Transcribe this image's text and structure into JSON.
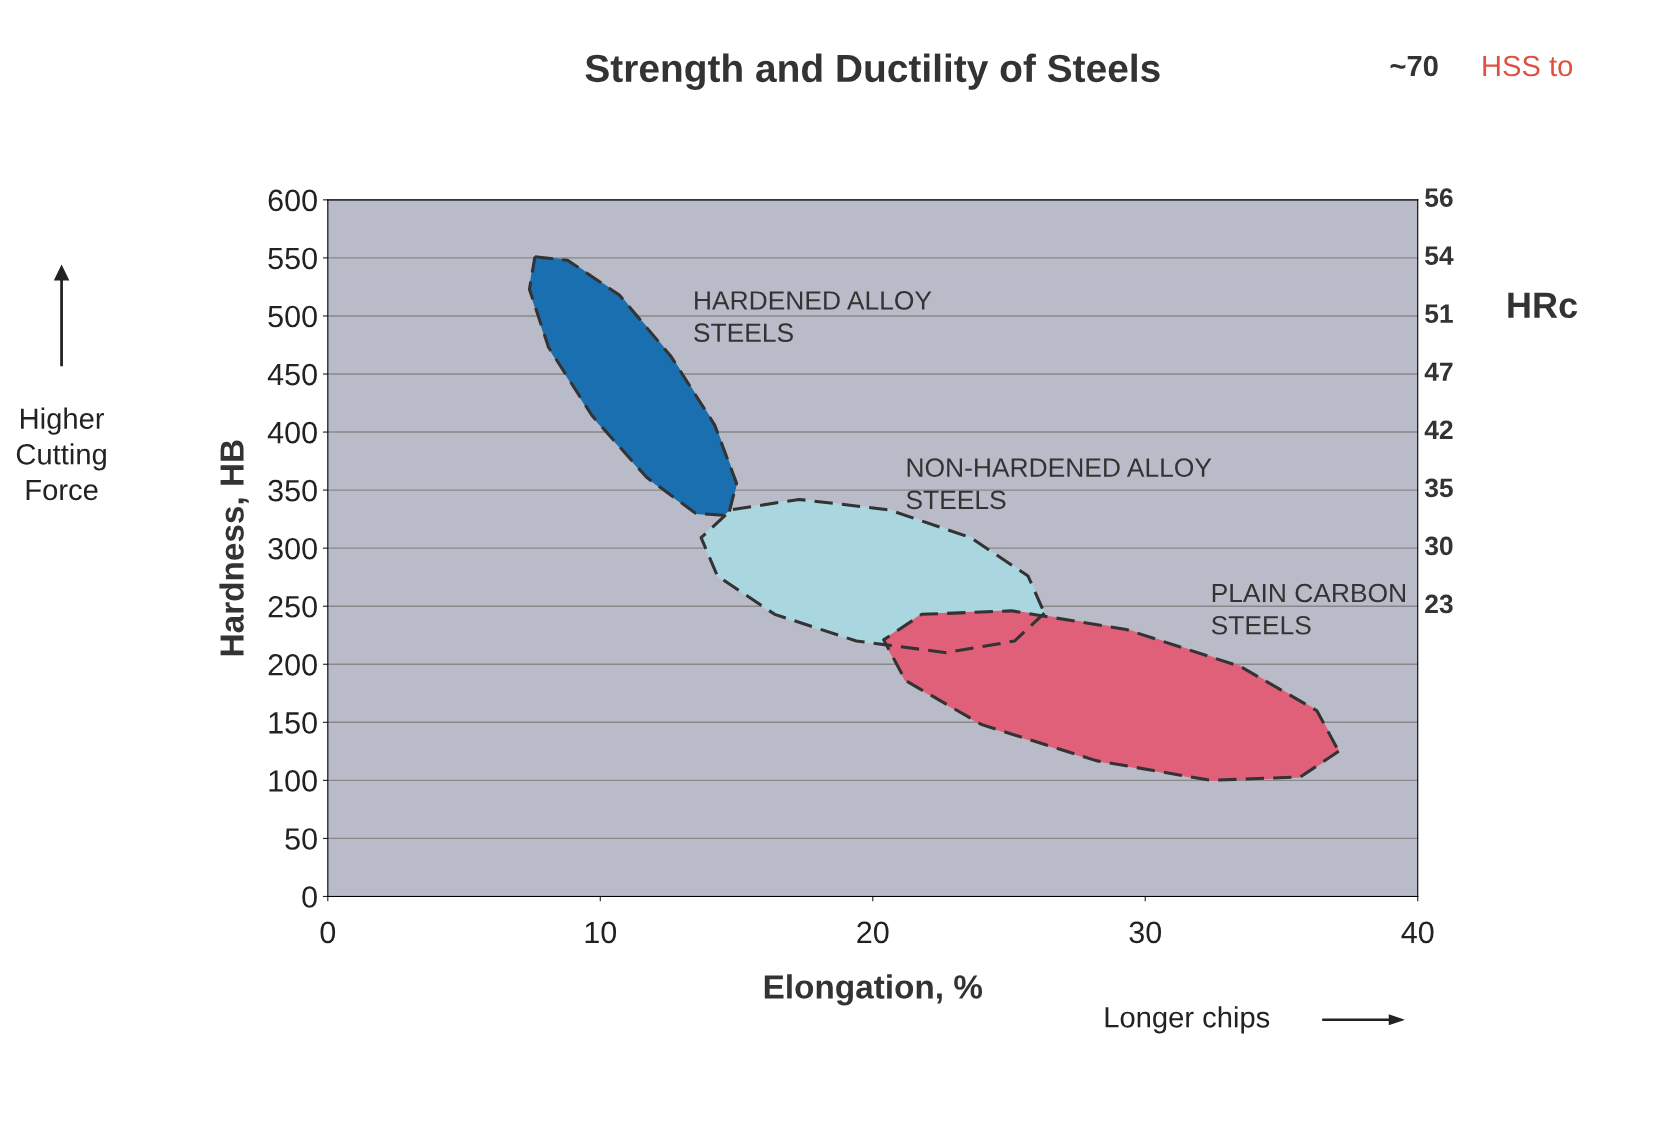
{
  "chart_data": {
    "type": "area",
    "title": "Strength and Ductility of Steels",
    "xlabel": "Elongation, %",
    "ylabel": "Hardness, HB",
    "y2label": "HRc",
    "xlim": [
      0,
      40
    ],
    "xticks": [
      0,
      10,
      20,
      30,
      40
    ],
    "ylim": [
      0,
      600
    ],
    "yticks": [
      0,
      50,
      100,
      150,
      200,
      250,
      300,
      350,
      400,
      450,
      500,
      550,
      600
    ],
    "grid": "y",
    "line_style": "dashed",
    "marker": "none",
    "series": [
      {
        "color": "#1a6fb0",
        "x": [
          7.6,
          8.8,
          10.7,
          12.6,
          14.2,
          15.0,
          14.7,
          13.5,
          11.7,
          9.7,
          8.1,
          7.4
        ],
        "values": [
          551,
          548,
          518,
          465,
          406,
          356,
          328,
          330,
          361,
          414,
          473,
          523
        ]
      },
      {
        "color": "#a9d6df",
        "x": [
          26.3,
          25.2,
          22.7,
          19.4,
          16.4,
          14.3,
          13.7,
          14.8,
          17.3,
          20.6,
          23.6,
          25.7
        ],
        "values": [
          244,
          220,
          210,
          220,
          243,
          276,
          309,
          333,
          342,
          333,
          309,
          276
        ]
      },
      {
        "color": "#e0607a",
        "x": [
          37.1,
          35.7,
          32.4,
          28.2,
          24.0,
          21.2,
          20.4,
          21.8,
          25.1,
          29.3,
          33.5,
          36.3
        ],
        "values": [
          125,
          103,
          100,
          117,
          148,
          186,
          221,
          243,
          246,
          230,
          198,
          160
        ]
      }
    ],
    "annotations": [
      "HARDENED ALLOY\nSTEELS",
      "NON-HARDENED ALLOY\nSTEELS",
      "PLAIN CARBON\nSTEELS",
      "~70",
      "HSS to",
      "Higher\nCutting\nForce",
      "Longer chips",
      "56",
      "54",
      "51",
      "47",
      "42",
      "35",
      "30",
      "23"
    ]
  }
}
